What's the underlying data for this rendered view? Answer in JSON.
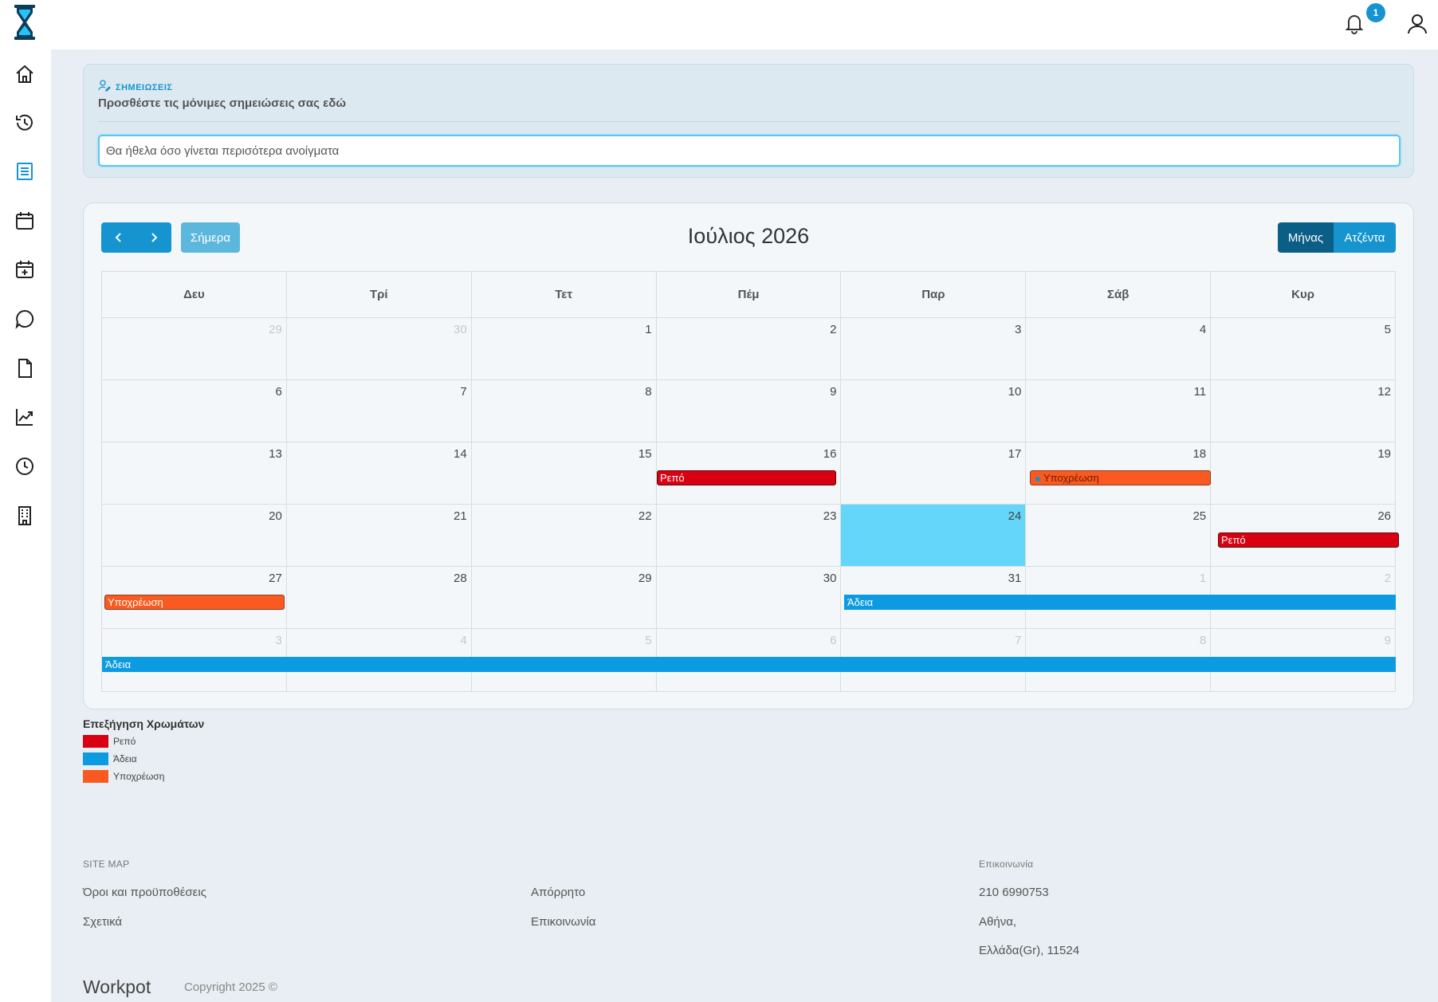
{
  "topbar": {
    "notification_count": "1"
  },
  "notes": {
    "title": "ΣΗΜΕΙΩΣΕΙΣ",
    "subtitle": "Προσθέστε τις μόνιμες σημειώσεις σας εδώ",
    "value": "Θα ήθελα όσο γίνεται περισότερα ανοίγματα"
  },
  "calendar": {
    "title": "Ιούλιος 2026",
    "today_label": "Σήμερα",
    "view_month": "Μήνας",
    "view_agenda": "Ατζέντα",
    "weekdays": [
      "Δευ",
      "Τρί",
      "Τετ",
      "Πέμ",
      "Παρ",
      "Σάβ",
      "Κυρ"
    ],
    "weeks": [
      [
        "29",
        "30",
        "1",
        "2",
        "3",
        "4",
        "5"
      ],
      [
        "6",
        "7",
        "8",
        "9",
        "10",
        "11",
        "12"
      ],
      [
        "13",
        "14",
        "15",
        "16",
        "17",
        "18",
        "19"
      ],
      [
        "20",
        "21",
        "22",
        "23",
        "24",
        "25",
        "26"
      ],
      [
        "27",
        "28",
        "29",
        "30",
        "31",
        "1",
        "2"
      ],
      [
        "3",
        "4",
        "5",
        "6",
        "7",
        "8",
        "9"
      ]
    ],
    "events": {
      "e1": "Ρεπό",
      "e2": "Υποχρέωση",
      "e3": "Ρεπό",
      "e4": "Υποχρέωση",
      "e5": "Άδεια",
      "e6": "Άδεια"
    },
    "colors": {
      "repo": "#d90012",
      "adeia": "#0c9be0",
      "ypoxreosi": "#fa5a1f",
      "today": "#63d6fa"
    }
  },
  "legend": {
    "title": "Επεξήγηση Χρωμάτων",
    "items": [
      "Ρεπό",
      "Άδεια",
      "Υποχρέωση"
    ]
  },
  "footer": {
    "sitemap_heading": "SITE MAP",
    "links": [
      "Όροι και προϋποθέσεις",
      "Σχετικά",
      "Απόρρητο",
      "Επικοινωνία"
    ],
    "contact_heading": "Επικοινωνία",
    "phone": "210 6990753",
    "city": "Αθήνα,",
    "country": "Ελλάδα(Gr), 11524",
    "brand": "Workpot",
    "copyright": "Copyright 2025 ©"
  }
}
